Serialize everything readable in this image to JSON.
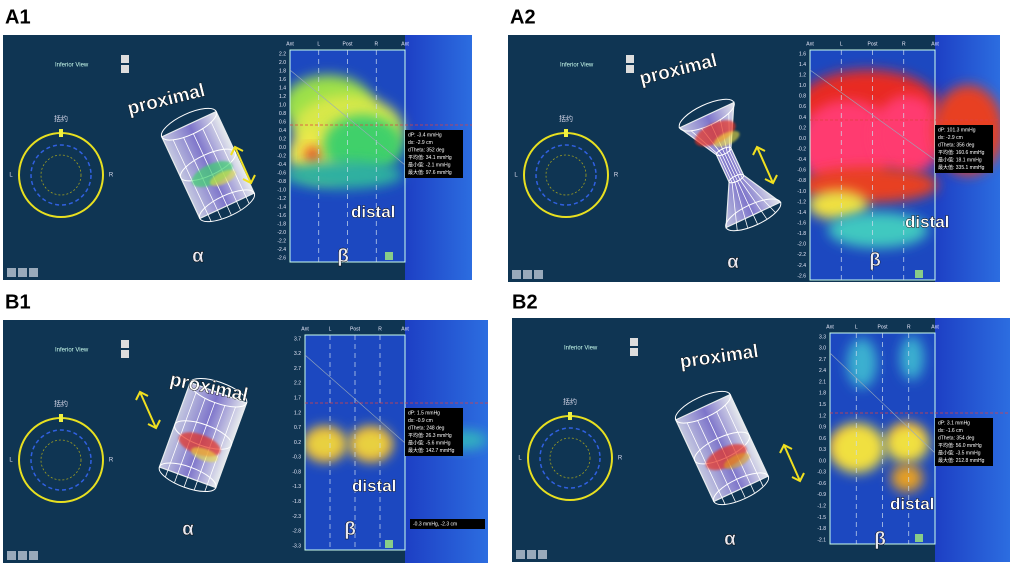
{
  "panels": [
    {
      "label": "A1",
      "view_title": "Inferior View",
      "dial_label": "括约",
      "dial_left": "L",
      "dial_right": "R",
      "proximal": "proximal",
      "distal": "distal",
      "alpha": "α",
      "beta": "β",
      "columns": [
        "Ant",
        "L",
        "Post",
        "R",
        "Ant"
      ],
      "yticks": [
        "2.2",
        "2.0",
        "1.8",
        "1.6",
        "1.4",
        "1.2",
        "1.0",
        "0.8",
        "0.6",
        "0.4",
        "0.2",
        "0.0",
        "-0.2",
        "-0.4",
        "-0.6",
        "-0.8",
        "-1.0",
        "-1.2",
        "-1.4",
        "-1.6",
        "-1.8",
        "-2.0",
        "-2.2",
        "-2.4",
        "-2.6"
      ],
      "info": [
        "dP: -3.4 mmHg",
        "dx: -2.9 cm",
        "dTheta: 352 deg",
        "平均值: 34.1 mmHg",
        "最小值: -2.1 mmHg",
        "最大值: 97.6 mmHg"
      ]
    },
    {
      "label": "A2",
      "view_title": "Inferior View",
      "dial_label": "括约",
      "dial_left": "L",
      "dial_right": "R",
      "proximal": "proximal",
      "distal": "distal",
      "alpha": "α",
      "beta": "β",
      "columns": [
        "Ant",
        "L",
        "Post",
        "R",
        "Ant"
      ],
      "yticks": [
        "1.6",
        "1.4",
        "1.2",
        "1.0",
        "0.8",
        "0.6",
        "0.4",
        "0.2",
        "0.0",
        "-0.2",
        "-0.4",
        "-0.6",
        "-0.8",
        "-1.0",
        "-1.2",
        "-1.4",
        "-1.6",
        "-1.8",
        "-2.0",
        "-2.2",
        "-2.4",
        "-2.6"
      ],
      "info": [
        "dP: 101.3 mmHg",
        "dx: -2.9 cm",
        "dTheta: 356 deg",
        "平均值: 160.6 mmHg",
        "最小值: 18.1 mmHg",
        "最大值: 335.1 mmHg"
      ]
    },
    {
      "label": "B1",
      "view_title": "Inferior View",
      "dial_label": "括约",
      "dial_left": "L",
      "dial_right": "R",
      "proximal": "proximal",
      "distal": "distal",
      "alpha": "α",
      "beta": "β",
      "columns": [
        "Ant",
        "L",
        "Post",
        "R",
        "Ant"
      ],
      "yticks": [
        "3.7",
        "3.2",
        "2.7",
        "2.2",
        "1.7",
        "1.2",
        "0.7",
        "0.2",
        "-0.3",
        "-0.8",
        "-1.3",
        "-1.8",
        "-2.3",
        "-2.8",
        "-3.3"
      ],
      "info": [
        "dP: 1.5 mmHg",
        "dx: -0.9 cm",
        "dTheta: 248 deg",
        "平均值: 26.3 mmHg",
        "最小值: -5.6 mmHg",
        "最大值: 142.7 mmHg"
      ],
      "footer": "-0.3 mmHg, -2.3 cm"
    },
    {
      "label": "B2",
      "view_title": "Inferior View",
      "dial_label": "括约",
      "dial_left": "L",
      "dial_right": "R",
      "proximal": "proximal",
      "distal": "distal",
      "alpha": "α",
      "beta": "β",
      "columns": [
        "Ant",
        "L",
        "Post",
        "R",
        "Ant"
      ],
      "yticks": [
        "3.3",
        "3.0",
        "2.7",
        "2.4",
        "2.1",
        "1.8",
        "1.5",
        "1.2",
        "0.9",
        "0.6",
        "0.3",
        "0.0",
        "-0.3",
        "-0.6",
        "-0.9",
        "-1.2",
        "-1.5",
        "-1.8",
        "-2.1"
      ],
      "info": [
        "dP: 3.1 mmHg",
        "dx: -1.6 cm",
        "dTheta: 354 deg",
        "平均值: 56.0 mmHg",
        "最小值: -3.5 mmHg",
        "最大值: 212.8 mmHg"
      ]
    }
  ]
}
